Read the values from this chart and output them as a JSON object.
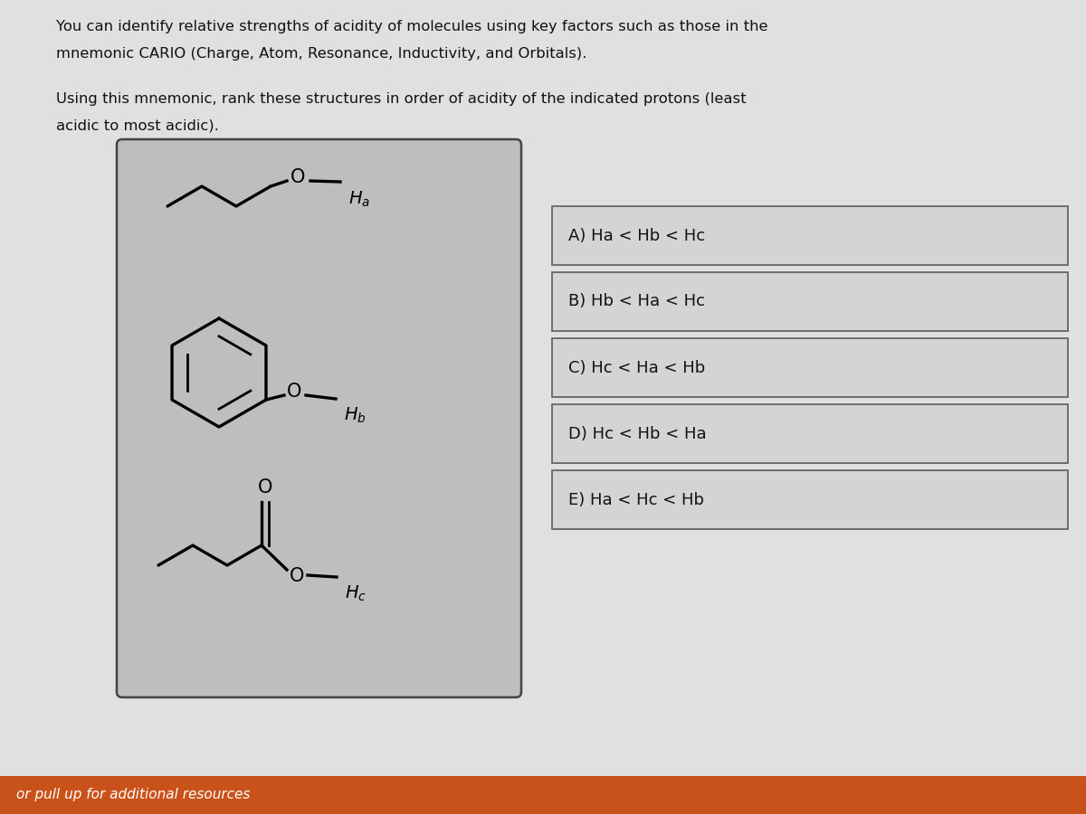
{
  "page_bg": "#e0e0e0",
  "title_text1": "You can identify relative strengths of acidity of molecules using key factors such as those in the",
  "title_text2": "mnemonic CARIO (Charge, Atom, Resonance, Inductivity, and Orbitals).",
  "subtitle_text1": "Using this mnemonic, rank these structures in order of acidity of the indicated protons (least",
  "subtitle_text2": "acidic to most acidic).",
  "box_bg": "#bebebe",
  "box_border": "#444444",
  "answer_box_bg": "#d4d4d4",
  "answer_border": "#666666",
  "answers": [
    "A) Ha < Hb < Hc",
    "B) Hb < Ha < Hc",
    "C) Hc < Ha < Hb",
    "D) Hc < Hb < Ha",
    "E) Ha < Hc < Hb"
  ],
  "footer_text": "or pull up for additional resources",
  "footer_bg": "#c8521a",
  "footer_text_color": "#ffffff",
  "text_color": "#111111"
}
